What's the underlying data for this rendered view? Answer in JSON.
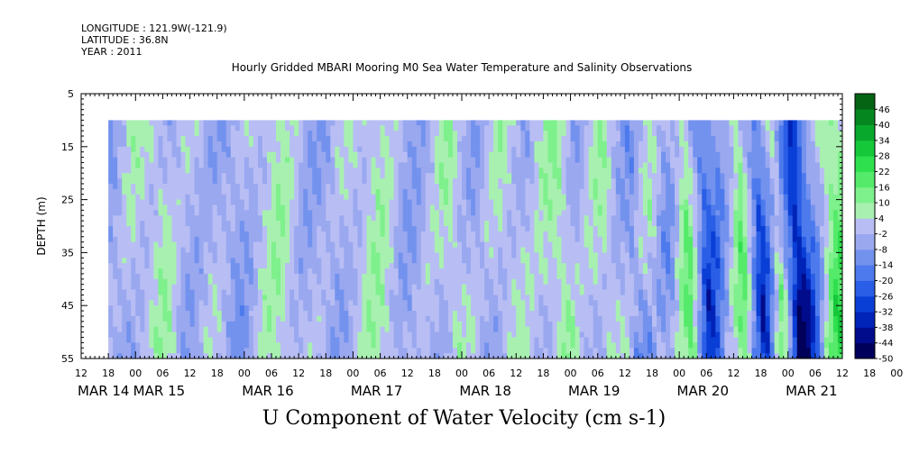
{
  "header": {
    "longitude": "LONGITUDE : 121.9W(-121.9)",
    "latitude": "LATITUDE : 36.8N",
    "year": "YEAR : 2011"
  },
  "chart_data": {
    "type": "heatmap",
    "title": "Hourly Gridded MBARI Mooring M0 Sea Water Temperature and Salinity Observations",
    "bottom_title": "U Component of Water Velocity (cm s-1)",
    "ylabel": "DEPTH (m)",
    "y_ticks": [
      5,
      15,
      25,
      35,
      45,
      55
    ],
    "ylim": [
      5,
      55
    ],
    "data_depth_range": [
      10,
      55
    ],
    "x_hour_labels": [
      "12",
      "18",
      "00",
      "06",
      "12",
      "18",
      "00",
      "06",
      "12",
      "18",
      "00",
      "06",
      "12",
      "18",
      "00",
      "06",
      "12",
      "18",
      "00",
      "06",
      "12",
      "18",
      "00",
      "06",
      "12",
      "18",
      "00",
      "06",
      "12",
      "18",
      "00",
      "06",
      "12"
    ],
    "x_date_labels": [
      "MAR 14",
      "MAR 15",
      "MAR 16",
      "MAR 17",
      "MAR 18",
      "MAR 19",
      "MAR 20",
      "MAR 21"
    ],
    "x_start": "MAR 14 12:00",
    "x_end": "MAR 21 12:00",
    "data_start": "MAR 14 18:00",
    "colorbar": {
      "levels": [
        -50,
        -44,
        -38,
        -32,
        -26,
        -20,
        -14,
        -8,
        -2,
        4,
        10,
        16,
        22,
        28,
        34,
        40,
        46
      ],
      "labels": [
        "46",
        "40",
        "34",
        "28",
        "22",
        "16",
        "10",
        "4",
        "-2",
        "-8",
        "-14",
        "-20",
        "-26",
        "-32",
        "-38",
        "-44",
        "-50"
      ],
      "colors_low_to_high": [
        "#00005a",
        "#000c8c",
        "#0024b8",
        "#0a3fd6",
        "#2a5ee6",
        "#4d7aec",
        "#7392ee",
        "#9aa8f0",
        "#b8bef4",
        "#a8f0b0",
        "#7ef08c",
        "#55ea6a",
        "#2fe04e",
        "#14c83a",
        "#08a82c",
        "#06861f",
        "#046414"
      ]
    }
  }
}
